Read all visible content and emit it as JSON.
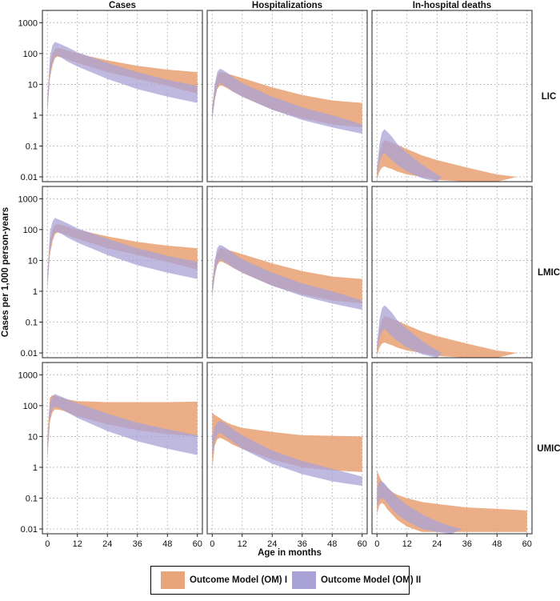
{
  "chart_data": {
    "type": "area",
    "title": "",
    "xlabel": "Age in months",
    "ylabel": "Cases per 1,000 person-years",
    "x_ticks": [
      0,
      12,
      24,
      36,
      48,
      60
    ],
    "xlim": [
      -2,
      62
    ],
    "y_scale": "log",
    "y_ticks": [
      0.01,
      0.1,
      1,
      10,
      100,
      1000
    ],
    "y_tick_labels": [
      "0.01",
      "0.1",
      "1",
      "10",
      "100",
      "1000"
    ],
    "ylim": [
      0.007,
      2500
    ],
    "grid": true,
    "legend_position": "bottom",
    "columns": [
      "Cases",
      "Hospitalizations",
      "In-hospital deaths"
    ],
    "rows": [
      "LIC",
      "LMIC",
      "UMIC"
    ],
    "series_colors": {
      "OM I": "#e9a57a",
      "OM II": "#a9a2d6"
    },
    "legend": [
      {
        "key": "OM I",
        "label": "Outcome Model (OM) I"
      },
      {
        "key": "OM II",
        "label": "Outcome Model (OM) II"
      }
    ],
    "panels": [
      {
        "row": "LIC",
        "col": "Cases",
        "om1": {
          "x": [
            0,
            1,
            2,
            3,
            4,
            6,
            8,
            12,
            24,
            36,
            48,
            60
          ],
          "low": [
            1.5,
            15,
            40,
            70,
            80,
            75,
            65,
            50,
            25,
            15,
            9,
            5
          ],
          "high": [
            4,
            40,
            100,
            140,
            150,
            140,
            125,
            100,
            60,
            40,
            30,
            25
          ]
        },
        "om2": {
          "x": [
            0,
            1,
            2,
            3,
            4,
            6,
            8,
            12,
            24,
            36,
            48,
            60
          ],
          "low": [
            1,
            20,
            50,
            80,
            85,
            70,
            55,
            38,
            15,
            7,
            4,
            2.5
          ],
          "high": [
            3,
            80,
            180,
            240,
            220,
            190,
            160,
            110,
            50,
            25,
            14,
            9
          ]
        }
      },
      {
        "row": "LIC",
        "col": "Hospitalizations",
        "om1": {
          "x": [
            0,
            1,
            2,
            3,
            4,
            6,
            8,
            12,
            24,
            36,
            48,
            60
          ],
          "low": [
            0.8,
            3,
            7,
            9,
            9,
            7.5,
            6,
            4,
            1.5,
            0.8,
            0.5,
            0.4
          ],
          "high": [
            2,
            8,
            18,
            25,
            25,
            22,
            20,
            16,
            8,
            4.5,
            3,
            2.5
          ]
        },
        "om2": {
          "x": [
            0,
            1,
            2,
            3,
            4,
            6,
            8,
            12,
            24,
            36,
            48,
            60
          ],
          "low": [
            0.6,
            3,
            8,
            11,
            10,
            8,
            6,
            4,
            1.5,
            0.7,
            0.4,
            0.25
          ],
          "high": [
            1.5,
            10,
            25,
            32,
            30,
            24,
            18,
            11,
            4,
            1.8,
            1,
            0.5
          ]
        }
      },
      {
        "row": "LIC",
        "col": "In-hospital deaths",
        "om1": {
          "x": [
            0,
            1,
            2,
            3,
            4,
            6,
            8,
            12,
            18,
            24,
            36,
            48,
            56
          ],
          "low": [
            0.008,
            0.015,
            0.02,
            0.022,
            0.02,
            0.018,
            0.015,
            0.012,
            0.01,
            0.008,
            0.007,
            0.007,
            0.01
          ],
          "high": [
            0.015,
            0.06,
            0.12,
            0.15,
            0.15,
            0.13,
            0.11,
            0.08,
            0.05,
            0.035,
            0.02,
            0.012,
            0.01
          ]
        },
        "om2": {
          "x": [
            0,
            1,
            2,
            3,
            4,
            6,
            8,
            12,
            18,
            24,
            26
          ],
          "low": [
            0.01,
            0.03,
            0.05,
            0.06,
            0.05,
            0.035,
            0.025,
            0.015,
            0.009,
            0.007,
            0.01
          ],
          "high": [
            0.02,
            0.12,
            0.28,
            0.35,
            0.3,
            0.2,
            0.12,
            0.06,
            0.025,
            0.012,
            0.01
          ]
        }
      },
      {
        "row": "LMIC",
        "col": "Cases",
        "om1": {
          "x": [
            0,
            1,
            2,
            3,
            4,
            6,
            8,
            12,
            24,
            36,
            48,
            60
          ],
          "low": [
            1.5,
            15,
            40,
            70,
            80,
            75,
            65,
            50,
            25,
            15,
            9,
            5
          ],
          "high": [
            4,
            40,
            100,
            140,
            150,
            140,
            125,
            100,
            60,
            40,
            30,
            25
          ]
        },
        "om2": {
          "x": [
            0,
            1,
            2,
            3,
            4,
            6,
            8,
            12,
            24,
            36,
            48,
            60
          ],
          "low": [
            1,
            20,
            50,
            80,
            85,
            70,
            55,
            38,
            15,
            7,
            4,
            2.5
          ],
          "high": [
            3,
            80,
            180,
            240,
            220,
            190,
            160,
            110,
            50,
            25,
            14,
            9
          ]
        }
      },
      {
        "row": "LMIC",
        "col": "Hospitalizations",
        "om1": {
          "x": [
            0,
            1,
            2,
            3,
            4,
            6,
            8,
            12,
            24,
            36,
            48,
            60
          ],
          "low": [
            0.8,
            3,
            7,
            9,
            9,
            7.5,
            6,
            4,
            1.5,
            0.8,
            0.5,
            0.4
          ],
          "high": [
            2,
            8,
            18,
            25,
            25,
            22,
            20,
            16,
            8,
            4.5,
            3,
            2.5
          ]
        },
        "om2": {
          "x": [
            0,
            1,
            2,
            3,
            4,
            6,
            8,
            12,
            24,
            36,
            48,
            60
          ],
          "low": [
            0.6,
            3,
            8,
            11,
            10,
            8,
            6,
            4,
            1.5,
            0.7,
            0.4,
            0.25
          ],
          "high": [
            1.5,
            10,
            25,
            32,
            30,
            24,
            18,
            11,
            4,
            1.8,
            1,
            0.5
          ]
        }
      },
      {
        "row": "LMIC",
        "col": "In-hospital deaths",
        "om1": {
          "x": [
            0,
            1,
            2,
            3,
            4,
            6,
            8,
            12,
            18,
            24,
            36,
            48,
            56
          ],
          "low": [
            0.008,
            0.015,
            0.02,
            0.022,
            0.02,
            0.018,
            0.015,
            0.012,
            0.01,
            0.008,
            0.007,
            0.007,
            0.01
          ],
          "high": [
            0.015,
            0.06,
            0.12,
            0.15,
            0.15,
            0.13,
            0.11,
            0.08,
            0.05,
            0.035,
            0.02,
            0.012,
            0.01
          ]
        },
        "om2": {
          "x": [
            0,
            1,
            2,
            3,
            4,
            6,
            8,
            12,
            18,
            24,
            26
          ],
          "low": [
            0.01,
            0.03,
            0.05,
            0.06,
            0.05,
            0.035,
            0.025,
            0.015,
            0.009,
            0.007,
            0.01
          ],
          "high": [
            0.02,
            0.12,
            0.28,
            0.35,
            0.3,
            0.2,
            0.12,
            0.06,
            0.025,
            0.012,
            0.01
          ]
        }
      },
      {
        "row": "UMIC",
        "col": "Cases",
        "om1": {
          "x": [
            0,
            1,
            2,
            3,
            4,
            6,
            8,
            12,
            24,
            36,
            48,
            60
          ],
          "low": [
            2,
            30,
            60,
            75,
            75,
            70,
            60,
            45,
            25,
            16,
            12,
            10
          ],
          "high": [
            10,
            180,
            220,
            210,
            200,
            180,
            160,
            140,
            130,
            130,
            130,
            135
          ]
        },
        "om2": {
          "x": [
            0,
            1,
            2,
            3,
            4,
            6,
            8,
            12,
            24,
            36,
            48,
            60
          ],
          "low": [
            2,
            40,
            80,
            95,
            90,
            75,
            60,
            40,
            15,
            7,
            4,
            2.5
          ],
          "high": [
            5,
            120,
            200,
            240,
            220,
            190,
            160,
            120,
            55,
            28,
            17,
            11
          ]
        }
      },
      {
        "row": "UMIC",
        "col": "Hospitalizations",
        "om1": {
          "x": [
            0,
            1,
            2,
            3,
            4,
            6,
            8,
            12,
            24,
            36,
            48,
            60
          ],
          "low": [
            0.8,
            5,
            8,
            9,
            8.5,
            7,
            5.5,
            4,
            1.8,
            1,
            0.8,
            0.7
          ],
          "high": [
            60,
            50,
            45,
            40,
            35,
            28,
            24,
            19,
            14,
            11,
            10.5,
            10
          ]
        },
        "om2": {
          "x": [
            0,
            1,
            2,
            3,
            4,
            6,
            8,
            12,
            24,
            36,
            48,
            60
          ],
          "low": [
            2,
            7,
            12,
            13,
            12,
            9,
            7,
            4,
            1.3,
            0.6,
            0.35,
            0.25
          ],
          "high": [
            10,
            20,
            28,
            32,
            30,
            24,
            18,
            11,
            3.5,
            1.6,
            0.9,
            0.5
          ]
        }
      },
      {
        "row": "UMIC",
        "col": "In-hospital deaths",
        "om1": {
          "x": [
            0,
            1,
            2,
            3,
            4,
            6,
            8,
            12,
            18,
            24,
            36,
            48,
            60
          ],
          "low": [
            0.03,
            0.06,
            0.07,
            0.06,
            0.045,
            0.03,
            0.02,
            0.012,
            0.008,
            0.008,
            0.008,
            0.008,
            0.008
          ],
          "high": [
            0.8,
            0.5,
            0.35,
            0.28,
            0.22,
            0.16,
            0.13,
            0.1,
            0.075,
            0.065,
            0.05,
            0.045,
            0.04
          ]
        },
        "om2": {
          "x": [
            0,
            1,
            2,
            3,
            4,
            6,
            8,
            12,
            18,
            24,
            30,
            34
          ],
          "low": [
            0.05,
            0.09,
            0.1,
            0.09,
            0.07,
            0.045,
            0.03,
            0.018,
            0.01,
            0.008,
            0.007,
            0.01
          ],
          "high": [
            0.2,
            0.35,
            0.35,
            0.3,
            0.24,
            0.16,
            0.11,
            0.06,
            0.03,
            0.018,
            0.012,
            0.01
          ]
        }
      }
    ]
  }
}
